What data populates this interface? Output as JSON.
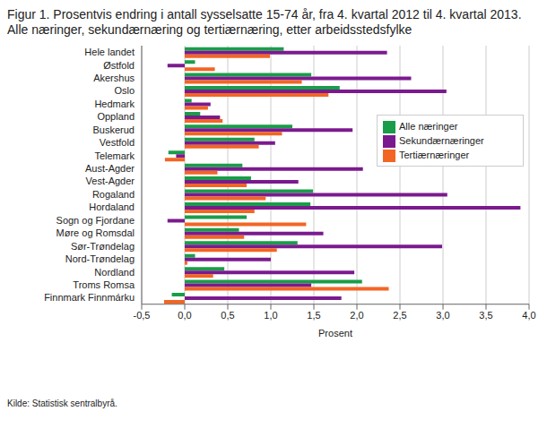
{
  "chart_data": {
    "type": "bar",
    "orientation": "horizontal",
    "title": "Figur 1. Prosentvis endring i antall sysselsatte 15-74 år, fra 4. kvartal 2012 til 4. kvartal 2013. Alle næringer, sekundærnæring og tertiærnæring, etter arbeidsstedsfylke",
    "x_label": "Prosent",
    "source": "Kilde: Statistisk sentralbyrå.",
    "categories": [
      "Hele landet",
      "Østfold",
      "Akershus",
      "Oslo",
      "Hedmark",
      "Oppland",
      "Buskerud",
      "Vestfold",
      "Telemark",
      "Aust-Agder",
      "Vest-Agder",
      "Rogaland",
      "Hordaland",
      "Sogn og Fjordane",
      "Møre og Romsdal",
      "Sør-Trøndelag",
      "Nord-Trøndelag",
      "Nordland",
      "Troms Romsa",
      "Finnmark Finnmárku"
    ],
    "series": [
      {
        "name": "Alle næringer",
        "color": "#1a9d49",
        "values": [
          1.15,
          0.12,
          1.47,
          1.8,
          0.08,
          0.18,
          1.25,
          0.81,
          -0.19,
          0.67,
          0.77,
          1.49,
          1.46,
          0.72,
          0.63,
          1.31,
          0.12,
          0.46,
          2.06,
          -0.15
        ]
      },
      {
        "name": "Sekundærnæringer",
        "color": "#7b1a8f",
        "values": [
          2.35,
          -0.2,
          2.63,
          3.04,
          0.3,
          0.41,
          1.95,
          1.05,
          -0.1,
          2.07,
          1.32,
          3.05,
          3.9,
          -0.2,
          1.61,
          2.99,
          1.0,
          1.97,
          1.47,
          1.82
        ]
      },
      {
        "name": "Tertiærnæringer",
        "color": "#f26522",
        "values": [
          0.99,
          0.35,
          1.36,
          1.67,
          0.27,
          0.44,
          1.13,
          0.86,
          -0.23,
          0.38,
          0.72,
          0.94,
          0.81,
          1.41,
          0.69,
          1.07,
          0.03,
          0.33,
          2.37,
          -0.24
        ]
      }
    ],
    "xlim": [
      -0.5,
      4.0
    ],
    "xticks": [
      {
        "value": -0.5,
        "label": "-0,5"
      },
      {
        "value": 0,
        "label": "0,0"
      },
      {
        "value": 0.5,
        "label": "0,5"
      },
      {
        "value": 1,
        "label": "1,0"
      },
      {
        "value": 1.5,
        "label": "1,5"
      },
      {
        "value": 2,
        "label": "2,0"
      },
      {
        "value": 2.5,
        "label": "2,5"
      },
      {
        "value": 3,
        "label": "3,0"
      },
      {
        "value": 3.5,
        "label": "3,5"
      },
      {
        "value": 4,
        "label": "4,0"
      }
    ],
    "grid": true,
    "legend": "upper right"
  }
}
